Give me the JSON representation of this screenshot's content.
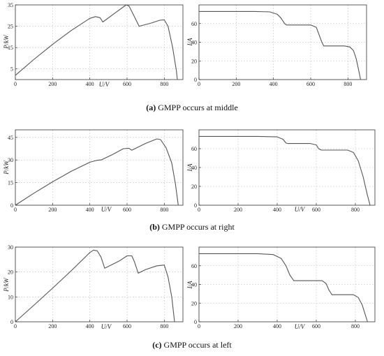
{
  "chart_data": [
    {
      "type": "line",
      "panel": "a-power",
      "xlabel": "U/V",
      "ylabel": "P/kW",
      "xlim": [
        0,
        900
      ],
      "ylim": [
        0,
        35
      ],
      "xticks": [
        0,
        200,
        400,
        600,
        800
      ],
      "yticks": [
        5,
        15,
        25,
        35
      ],
      "grid": true,
      "x": [
        0,
        100,
        200,
        300,
        400,
        430,
        455,
        470,
        540,
        595,
        610,
        625,
        665,
        730,
        775,
        800,
        820,
        845,
        865,
        870
      ],
      "y": [
        2,
        9.5,
        16.5,
        23,
        28.7,
        29.5,
        29,
        27,
        31.5,
        35,
        34.5,
        32,
        25,
        26.5,
        27.8,
        28,
        25,
        15,
        4,
        0
      ]
    },
    {
      "type": "line",
      "panel": "a-current",
      "xlabel": "",
      "ylabel": "I/A",
      "xlim": [
        0,
        900
      ],
      "ylim": [
        0,
        80
      ],
      "xticks": [
        0,
        200,
        400,
        600,
        800
      ],
      "yticks": [
        0,
        20,
        40,
        60
      ],
      "grid": true,
      "x": [
        0,
        300,
        380,
        420,
        440,
        460,
        470,
        600,
        630,
        645,
        660,
        670,
        780,
        810,
        830,
        845,
        860,
        868
      ],
      "y": [
        73,
        73,
        72.5,
        70,
        66,
        60,
        58.5,
        58.5,
        56,
        48,
        40,
        36,
        36,
        35,
        31,
        22,
        8,
        0
      ]
    },
    {
      "type": "line",
      "panel": "b-power",
      "xlabel": "U/V",
      "ylabel": "P/kW",
      "xlim": [
        0,
        900
      ],
      "ylim": [
        0,
        50
      ],
      "xticks": [
        0,
        200,
        400,
        600,
        800
      ],
      "yticks": [
        0,
        15,
        30,
        45
      ],
      "grid": true,
      "x": [
        0,
        100,
        200,
        300,
        400,
        440,
        460,
        520,
        580,
        610,
        625,
        700,
        760,
        780,
        810,
        840,
        860,
        875
      ],
      "y": [
        0,
        8,
        15.5,
        22.5,
        28.5,
        29.8,
        30,
        33.5,
        37.5,
        37.8,
        36.5,
        41,
        44,
        43.5,
        38,
        28,
        14,
        0
      ]
    },
    {
      "type": "line",
      "panel": "b-current",
      "xlabel": "U/V",
      "ylabel": "I/A",
      "xlim": [
        0,
        900
      ],
      "ylim": [
        0,
        80
      ],
      "xticks": [
        0,
        200,
        400,
        600,
        800
      ],
      "yticks": [
        0,
        20,
        40,
        60
      ],
      "grid": true,
      "x": [
        0,
        300,
        400,
        430,
        445,
        455,
        570,
        600,
        612,
        625,
        760,
        790,
        815,
        840,
        860,
        875
      ],
      "y": [
        73,
        73,
        72.5,
        70,
        66,
        65.5,
        65.5,
        64,
        60,
        58.5,
        58.5,
        56,
        47,
        30,
        12,
        0
      ]
    },
    {
      "type": "line",
      "panel": "c-power",
      "xlabel": "U/V",
      "ylabel": "P/kW",
      "xlim": [
        0,
        900
      ],
      "ylim": [
        0,
        30
      ],
      "xticks": [
        0,
        200,
        400,
        600,
        800
      ],
      "yticks": [
        0,
        10,
        20,
        30
      ],
      "grid": true,
      "x": [
        0,
        100,
        200,
        300,
        400,
        420,
        440,
        460,
        480,
        560,
        600,
        625,
        640,
        660,
        700,
        760,
        800,
        820,
        840,
        855
      ],
      "y": [
        0,
        6.7,
        13.5,
        20.5,
        27.8,
        28.8,
        28.5,
        26,
        21.5,
        24.5,
        26.5,
        26.5,
        24,
        19.5,
        21,
        22.5,
        22.8,
        18,
        10,
        0
      ]
    },
    {
      "type": "line",
      "panel": "c-current",
      "xlabel": "U/V",
      "ylabel": "I/A",
      "xlim": [
        0,
        900
      ],
      "ylim": [
        0,
        80
      ],
      "xticks": [
        0,
        200,
        400,
        600,
        800
      ],
      "yticks": [
        0,
        20,
        40,
        60
      ],
      "grid": true,
      "x": [
        0,
        300,
        380,
        420,
        445,
        465,
        485,
        630,
        650,
        665,
        680,
        790,
        815,
        835,
        850,
        862
      ],
      "y": [
        73,
        73,
        72,
        68,
        60,
        50,
        44,
        44,
        41,
        34,
        29,
        29,
        26,
        18,
        8,
        0
      ]
    }
  ],
  "captions": {
    "a_label": "(a)",
    "a_text": " GMPP occurs at middle",
    "b_label": "(b)",
    "b_text": " GMPP occurs at right",
    "c_label": "(c)",
    "c_text": " GMPP occurs at left"
  }
}
